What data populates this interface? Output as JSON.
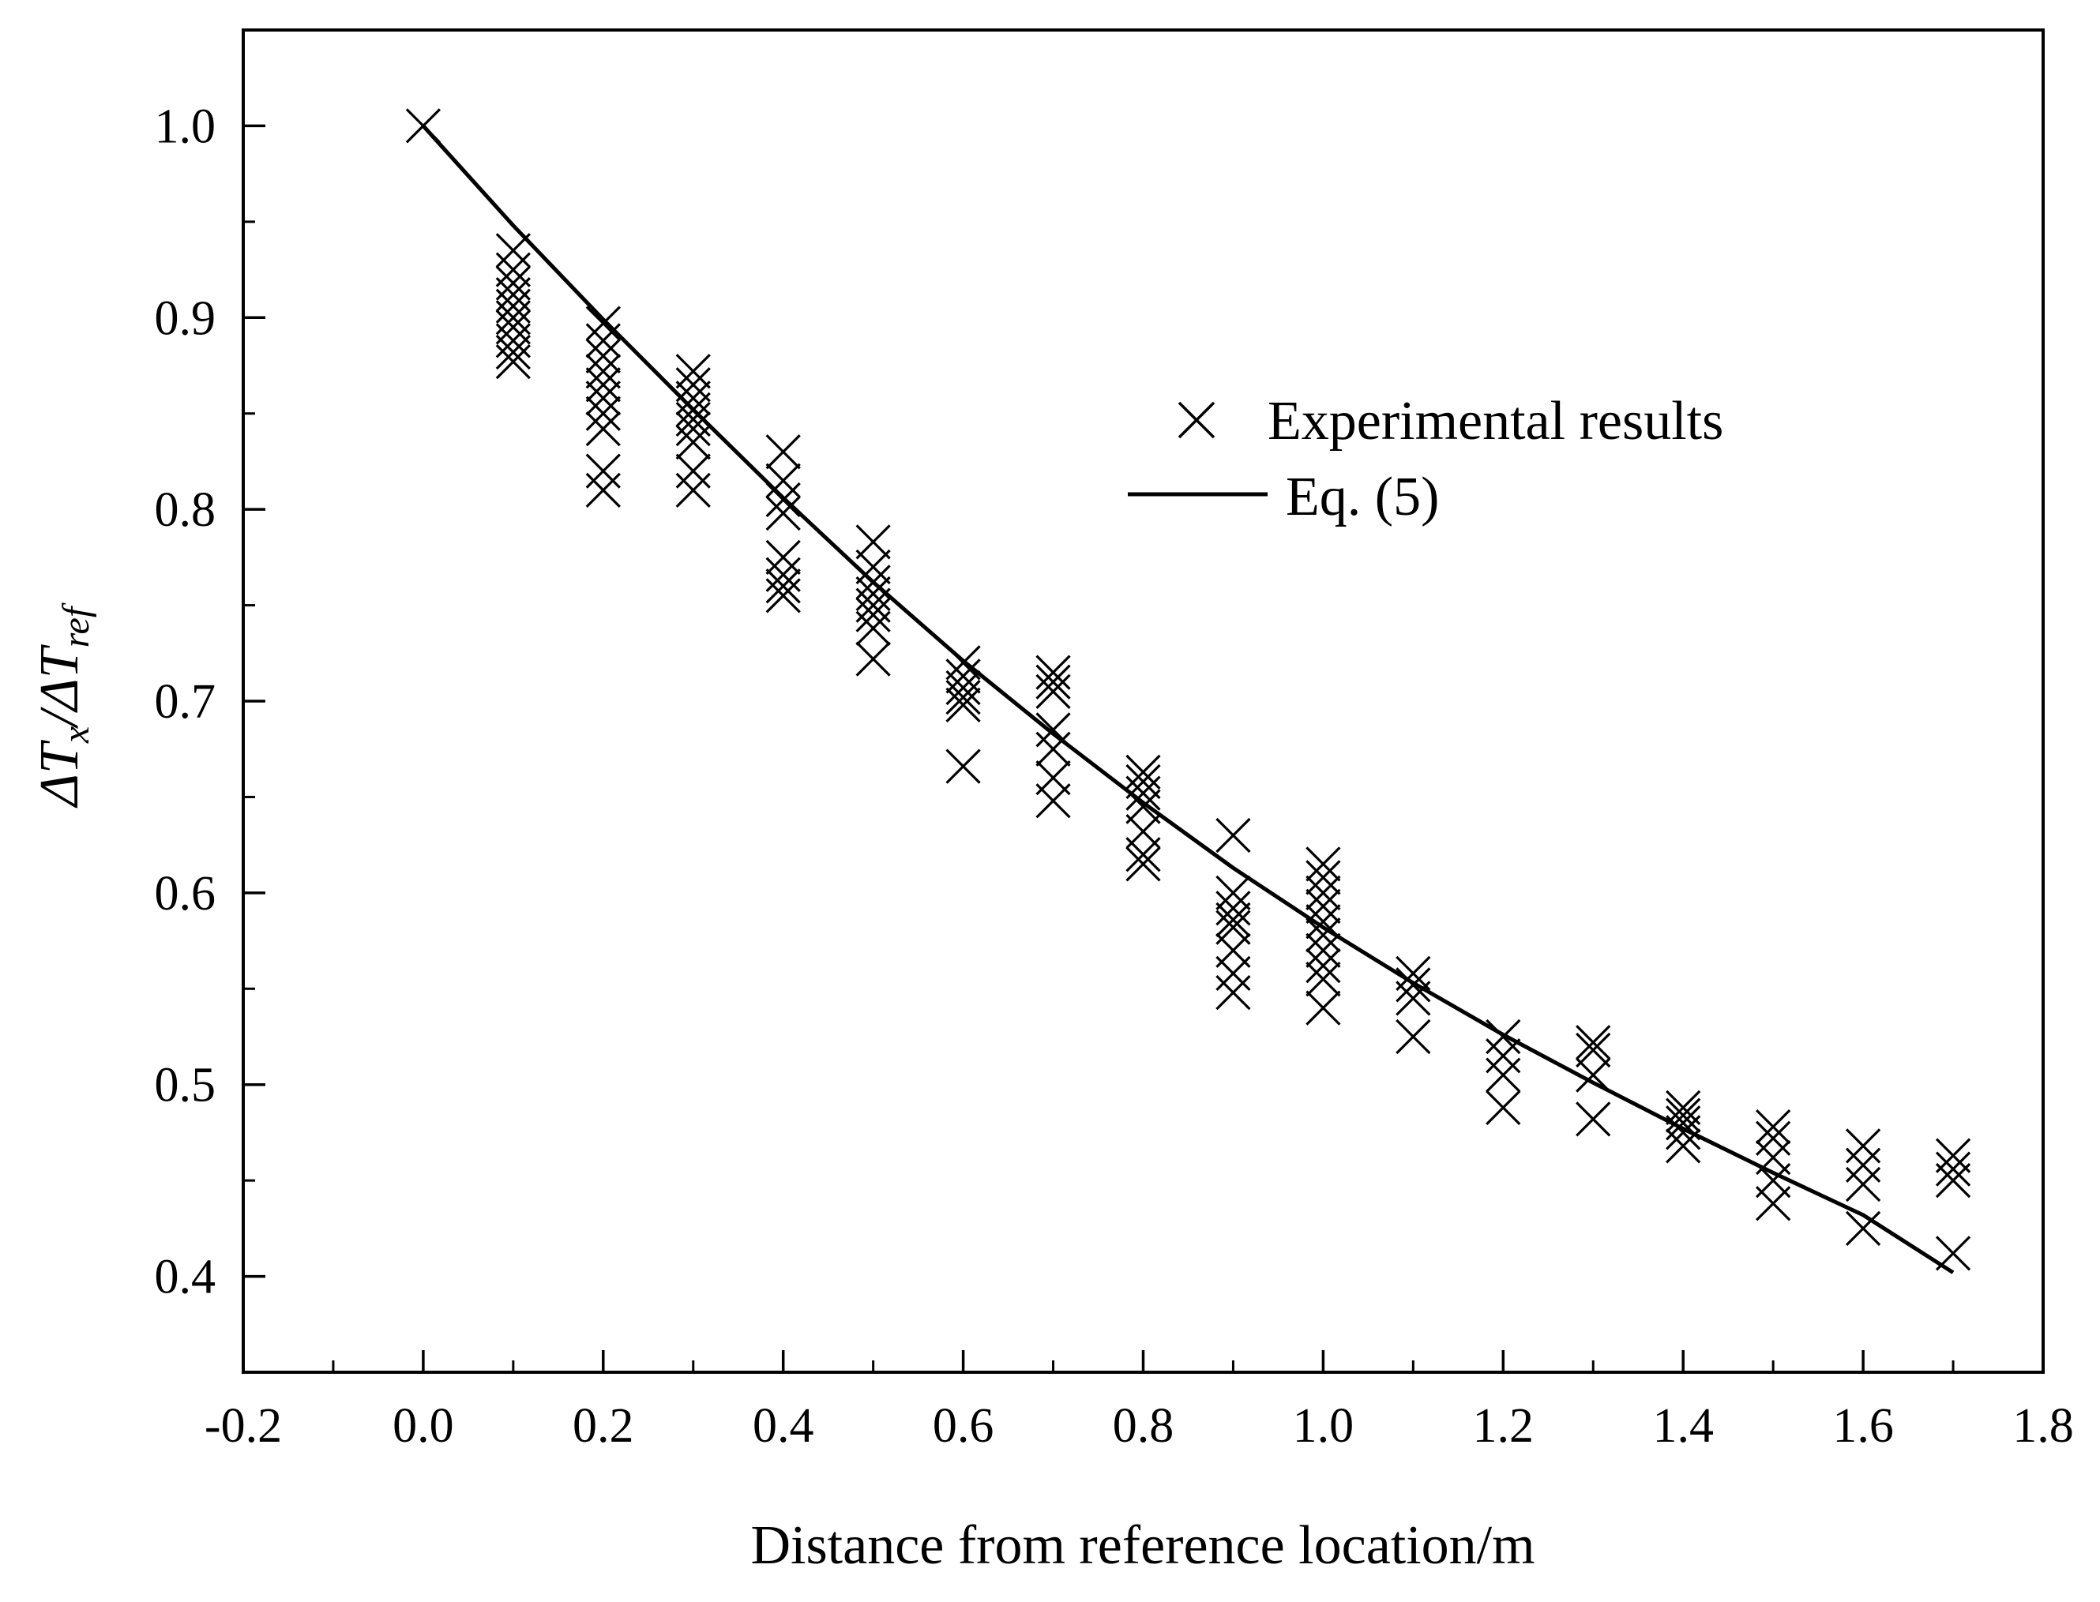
{
  "chart_data": {
    "type": "scatter",
    "title": "",
    "xlabel": "Distance from reference location/m",
    "ylabel": {
      "main": "ΔT",
      "sub1": "x",
      "sep": "/ΔT",
      "sub2": "ref"
    },
    "xlim": [
      -0.2,
      1.8
    ],
    "ylim": [
      0.35,
      1.05
    ],
    "x_ticks": [
      -0.2,
      0.0,
      0.2,
      0.4,
      0.6,
      0.8,
      1.0,
      1.2,
      1.4,
      1.6,
      1.8
    ],
    "x_tick_labels": [
      "-0.2",
      "0.0",
      "0.2",
      "0.4",
      "0.6",
      "0.8",
      "1.0",
      "1.2",
      "1.4",
      "1.6",
      "1.8"
    ],
    "y_ticks": [
      0.4,
      0.5,
      0.6,
      0.7,
      0.8,
      0.9,
      1.0
    ],
    "y_tick_labels": [
      "0.4",
      "0.5",
      "0.6",
      "0.7",
      "0.8",
      "0.9",
      "1.0"
    ],
    "legend_position": "upper-right",
    "series": [
      {
        "name": "Experimental results",
        "marker": "x",
        "points": [
          [
            0.0,
            1.0
          ],
          [
            0.1,
            0.935
          ],
          [
            0.1,
            0.925
          ],
          [
            0.1,
            0.918
          ],
          [
            0.1,
            0.912
          ],
          [
            0.1,
            0.906
          ],
          [
            0.1,
            0.9
          ],
          [
            0.1,
            0.895
          ],
          [
            0.1,
            0.888
          ],
          [
            0.1,
            0.882
          ],
          [
            0.1,
            0.877
          ],
          [
            0.2,
            0.897
          ],
          [
            0.2,
            0.888
          ],
          [
            0.2,
            0.88
          ],
          [
            0.2,
            0.872
          ],
          [
            0.2,
            0.865
          ],
          [
            0.2,
            0.858
          ],
          [
            0.2,
            0.85
          ],
          [
            0.2,
            0.842
          ],
          [
            0.2,
            0.82
          ],
          [
            0.2,
            0.81
          ],
          [
            0.3,
            0.872
          ],
          [
            0.3,
            0.865
          ],
          [
            0.3,
            0.858
          ],
          [
            0.3,
            0.852
          ],
          [
            0.3,
            0.847
          ],
          [
            0.3,
            0.842
          ],
          [
            0.3,
            0.835
          ],
          [
            0.3,
            0.82
          ],
          [
            0.3,
            0.81
          ],
          [
            0.4,
            0.83
          ],
          [
            0.4,
            0.815
          ],
          [
            0.4,
            0.805
          ],
          [
            0.4,
            0.798
          ],
          [
            0.4,
            0.775
          ],
          [
            0.4,
            0.766
          ],
          [
            0.4,
            0.76
          ],
          [
            0.4,
            0.755
          ],
          [
            0.5,
            0.783
          ],
          [
            0.5,
            0.77
          ],
          [
            0.5,
            0.762
          ],
          [
            0.5,
            0.756
          ],
          [
            0.5,
            0.75
          ],
          [
            0.5,
            0.745
          ],
          [
            0.5,
            0.738
          ],
          [
            0.5,
            0.722
          ],
          [
            0.6,
            0.72
          ],
          [
            0.6,
            0.713
          ],
          [
            0.6,
            0.707
          ],
          [
            0.6,
            0.702
          ],
          [
            0.6,
            0.698
          ],
          [
            0.6,
            0.666
          ],
          [
            0.7,
            0.715
          ],
          [
            0.7,
            0.71
          ],
          [
            0.7,
            0.705
          ],
          [
            0.7,
            0.685
          ],
          [
            0.7,
            0.675
          ],
          [
            0.7,
            0.66
          ],
          [
            0.7,
            0.648
          ],
          [
            0.8,
            0.663
          ],
          [
            0.8,
            0.658
          ],
          [
            0.8,
            0.652
          ],
          [
            0.8,
            0.645
          ],
          [
            0.8,
            0.632
          ],
          [
            0.8,
            0.62
          ],
          [
            0.8,
            0.615
          ],
          [
            0.9,
            0.63
          ],
          [
            0.9,
            0.6
          ],
          [
            0.9,
            0.592
          ],
          [
            0.9,
            0.586
          ],
          [
            0.9,
            0.582
          ],
          [
            0.9,
            0.57
          ],
          [
            0.9,
            0.558
          ],
          [
            0.9,
            0.548
          ],
          [
            1.0,
            0.615
          ],
          [
            1.0,
            0.608
          ],
          [
            1.0,
            0.6
          ],
          [
            1.0,
            0.593
          ],
          [
            1.0,
            0.585
          ],
          [
            1.0,
            0.578
          ],
          [
            1.0,
            0.57
          ],
          [
            1.0,
            0.562
          ],
          [
            1.0,
            0.555
          ],
          [
            1.0,
            0.54
          ],
          [
            1.1,
            0.558
          ],
          [
            1.1,
            0.552
          ],
          [
            1.1,
            0.545
          ],
          [
            1.1,
            0.525
          ],
          [
            1.2,
            0.525
          ],
          [
            1.2,
            0.515
          ],
          [
            1.2,
            0.505
          ],
          [
            1.2,
            0.488
          ],
          [
            1.3,
            0.522
          ],
          [
            1.3,
            0.518
          ],
          [
            1.3,
            0.505
          ],
          [
            1.3,
            0.482
          ],
          [
            1.4,
            0.488
          ],
          [
            1.4,
            0.484
          ],
          [
            1.4,
            0.48
          ],
          [
            1.4,
            0.475
          ],
          [
            1.4,
            0.468
          ],
          [
            1.5,
            0.478
          ],
          [
            1.5,
            0.472
          ],
          [
            1.5,
            0.462
          ],
          [
            1.5,
            0.45
          ],
          [
            1.5,
            0.438
          ],
          [
            1.6,
            0.468
          ],
          [
            1.6,
            0.458
          ],
          [
            1.6,
            0.448
          ],
          [
            1.6,
            0.425
          ],
          [
            1.7,
            0.463
          ],
          [
            1.7,
            0.456
          ],
          [
            1.7,
            0.45
          ],
          [
            1.7,
            0.412
          ]
        ]
      },
      {
        "name": "Eq. (5)",
        "line": "solid",
        "x": [
          0.0,
          0.1,
          0.2,
          0.3,
          0.4,
          0.5,
          0.6,
          0.7,
          0.8,
          0.9,
          1.0,
          1.1,
          1.2,
          1.3,
          1.4,
          1.5,
          1.6,
          1.7
        ],
        "y": [
          1.0,
          0.948,
          0.899,
          0.852,
          0.806,
          0.762,
          0.721,
          0.683,
          0.647,
          0.613,
          0.582,
          0.553,
          0.526,
          0.501,
          0.477,
          0.454,
          0.432,
          0.402
        ]
      }
    ]
  }
}
